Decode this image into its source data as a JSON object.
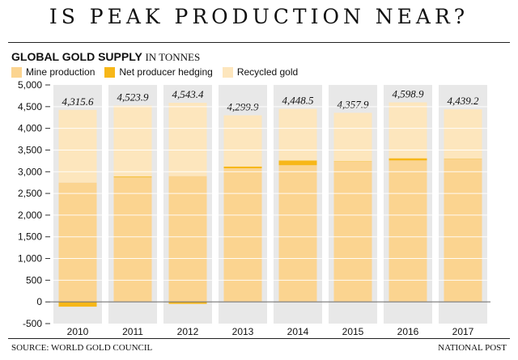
{
  "headline": "IS PEAK PRODUCTION NEAR?",
  "subtitle_bold": "GLOBAL GOLD SUPPLY",
  "subtitle_unit": "IN TONNES",
  "source": "SOURCE: WORLD GOLD COUNCIL",
  "credit": "NATIONAL POST",
  "colors": {
    "mine": "#fbd490",
    "hedging": "#f7b718",
    "recycled": "#fde6bd",
    "column_bg": "#e8e8e8",
    "grid": "#ffffff"
  },
  "chart_data": {
    "type": "bar",
    "stacked": true,
    "categories": [
      "2010",
      "2011",
      "2012",
      "2013",
      "2014",
      "2015",
      "2016",
      "2017"
    ],
    "series": [
      {
        "name": "Mine production",
        "values": [
          2750,
          2870,
          2900,
          3080,
          3150,
          3230,
          3260,
          3290
        ]
      },
      {
        "name": "Net producer hedging",
        "values": [
          -110,
          20,
          -45,
          40,
          110,
          10,
          50,
          10
        ]
      },
      {
        "name": "Recycled gold",
        "values": [
          1675.6,
          1633.9,
          1688.4,
          1179.9,
          1188.5,
          1117.9,
          1288.9,
          1139.2
        ]
      }
    ],
    "totals": [
      "4,315.6",
      "4,523.9",
      "4,543.4",
      "4,299.9",
      "4,448.5",
      "4,357.9",
      "4,598.9",
      "4,439.2"
    ],
    "ylim": [
      -500,
      5000
    ],
    "yticks": [
      -500,
      0,
      500,
      1000,
      1500,
      2000,
      2500,
      3000,
      3500,
      4000,
      4500,
      5000
    ],
    "ytick_labels": [
      "-500",
      "0",
      "500",
      "1,000",
      "1,500",
      "2,000",
      "2,500",
      "3,000",
      "3,500",
      "4,000",
      "4,500",
      "5,000"
    ],
    "xlabel": "",
    "ylabel": "",
    "legend_position": "top-left"
  }
}
